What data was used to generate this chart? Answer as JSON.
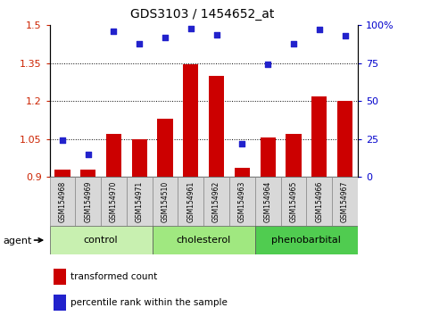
{
  "title": "GDS3103 / 1454652_at",
  "samples": [
    "GSM154968",
    "GSM154969",
    "GSM154970",
    "GSM154971",
    "GSM154510",
    "GSM154961",
    "GSM154962",
    "GSM154963",
    "GSM154964",
    "GSM154965",
    "GSM154966",
    "GSM154967"
  ],
  "transformed_count": [
    0.93,
    0.93,
    1.07,
    1.05,
    1.13,
    1.345,
    1.3,
    0.935,
    1.055,
    1.07,
    1.22,
    1.2
  ],
  "percentile_rank": [
    24,
    15,
    96,
    88,
    92,
    98,
    94,
    22,
    74,
    88,
    97,
    93
  ],
  "groups": [
    {
      "label": "control",
      "start": 0,
      "end": 4,
      "color": "#c8f0b0"
    },
    {
      "label": "cholesterol",
      "start": 4,
      "end": 8,
      "color": "#a0e880"
    },
    {
      "label": "phenobarbital",
      "start": 8,
      "end": 12,
      "color": "#50cc50"
    }
  ],
  "bar_color": "#cc0000",
  "dot_color": "#2222cc",
  "ylim_left": [
    0.9,
    1.5
  ],
  "ylim_right": [
    0,
    100
  ],
  "yticks_left": [
    0.9,
    1.05,
    1.2,
    1.35,
    1.5
  ],
  "yticks_right": [
    0,
    25,
    50,
    75,
    100
  ],
  "hlines": [
    1.05,
    1.2,
    1.35
  ],
  "background_color": "#ffffff",
  "tick_label_color_left": "#cc2200",
  "tick_label_color_right": "#0000cc",
  "bar_width": 0.6,
  "plot_bg": "#ffffff",
  "grid_color": "#cccccc",
  "sample_box_color": "#d8d8d8"
}
